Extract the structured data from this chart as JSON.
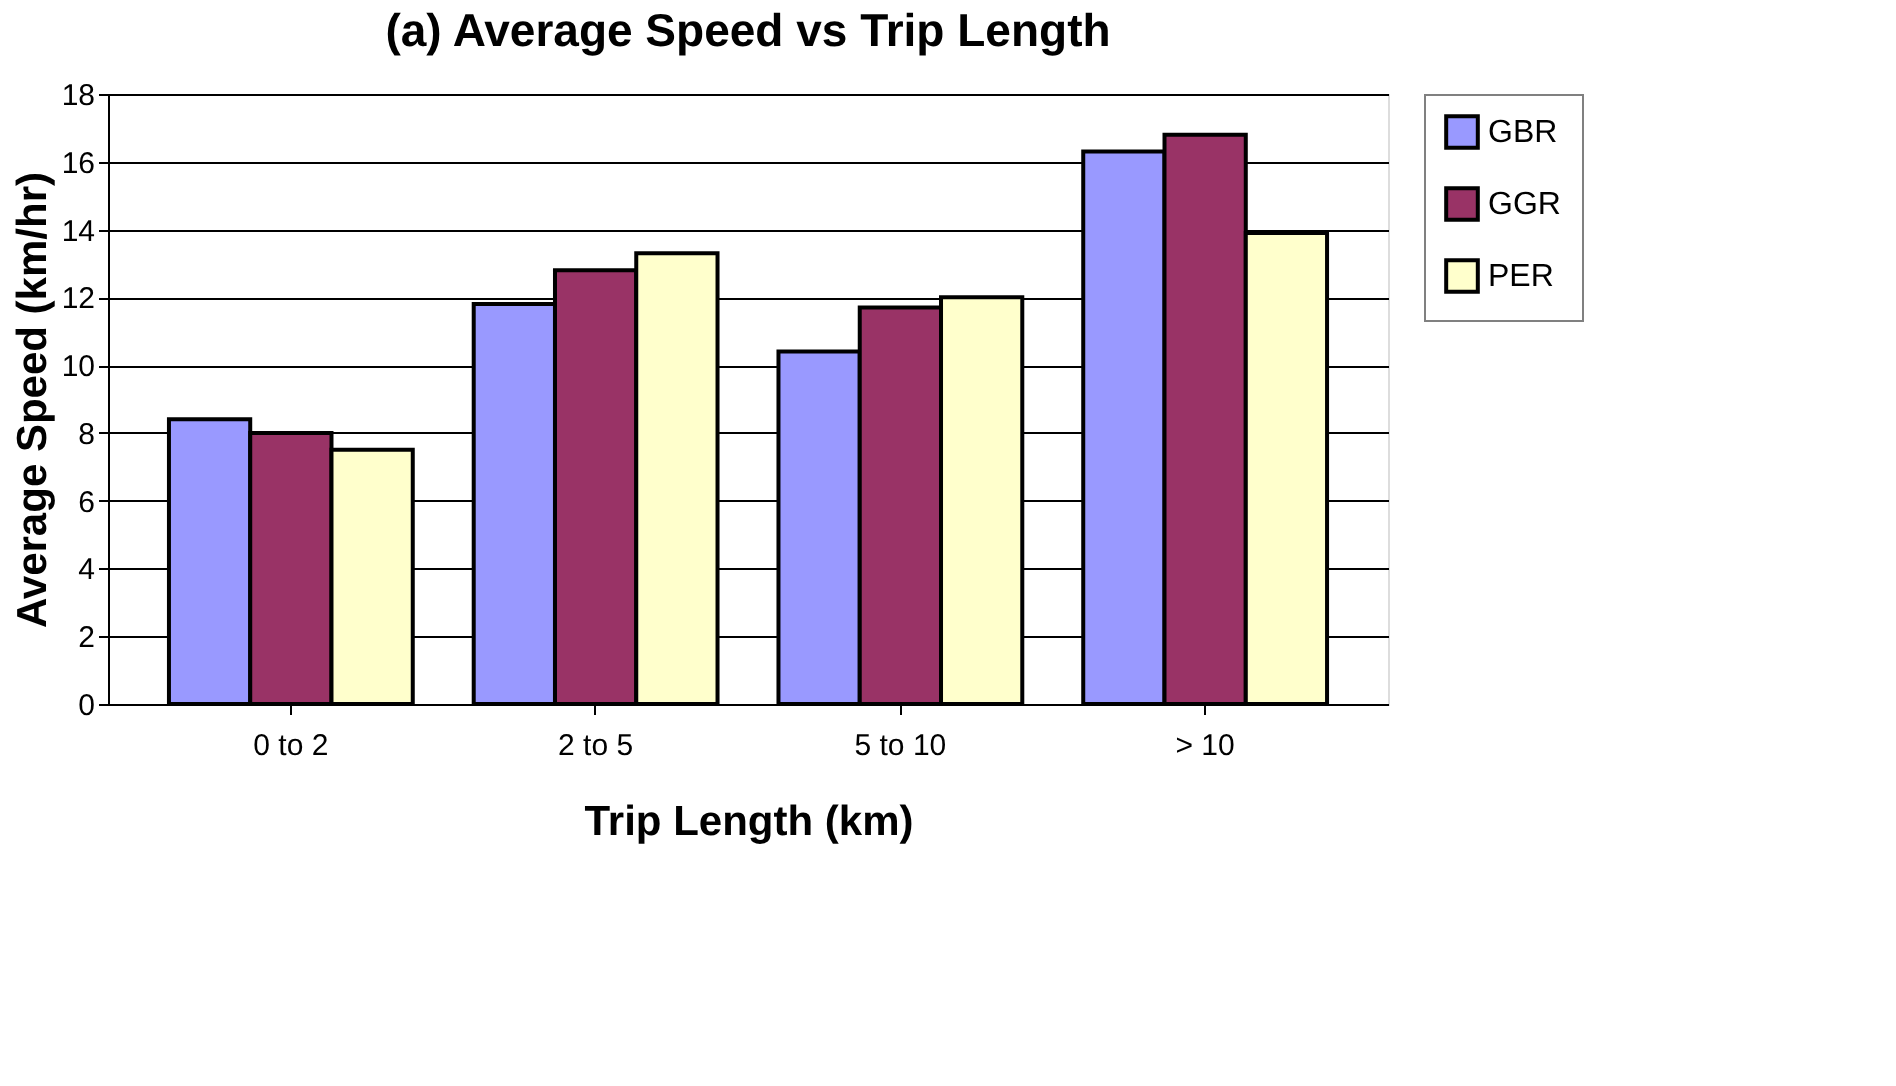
{
  "chart_data": {
    "type": "bar",
    "title": "(a)  Average Speed vs Trip Length",
    "xlabel": "Trip Length (km)",
    "ylabel": "Average Speed (km/hr)",
    "categories": [
      "0 to 2",
      "2 to 5",
      "5 to 10",
      "> 10"
    ],
    "series": [
      {
        "name": "GBR",
        "color": "#9999ff",
        "values": [
          8.4,
          11.8,
          10.4,
          16.3
        ]
      },
      {
        "name": "GGR",
        "color": "#993366",
        "values": [
          8.0,
          12.8,
          11.7,
          16.8
        ]
      },
      {
        "name": "PER",
        "color": "#ffffcc",
        "values": [
          7.5,
          13.3,
          12.0,
          13.9
        ]
      }
    ],
    "ylim": [
      0,
      18
    ],
    "yticks": [
      0,
      2,
      4,
      6,
      8,
      10,
      12,
      14,
      16,
      18
    ],
    "grid": "y",
    "legend": "right"
  }
}
